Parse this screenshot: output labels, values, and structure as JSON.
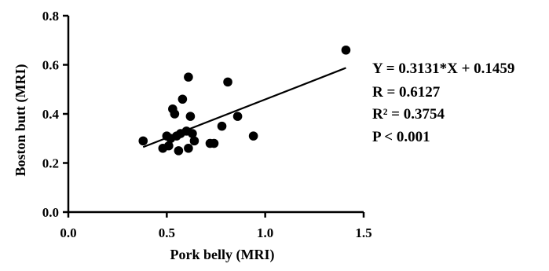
{
  "chart_data": {
    "type": "scatter",
    "xlabel": "Pork belly (MRI)",
    "ylabel": "Boston butt (MRI)",
    "xlim": [
      0.0,
      1.5
    ],
    "ylim": [
      0.0,
      0.8
    ],
    "xticks": [
      "0.0",
      "0.5",
      "1.0",
      "1.5"
    ],
    "yticks": [
      "0.0",
      "0.2",
      "0.4",
      "0.6",
      "0.8"
    ],
    "grid": false,
    "points": [
      {
        "x": 0.38,
        "y": 0.29
      },
      {
        "x": 0.48,
        "y": 0.26
      },
      {
        "x": 0.5,
        "y": 0.31
      },
      {
        "x": 0.51,
        "y": 0.27
      },
      {
        "x": 0.52,
        "y": 0.3
      },
      {
        "x": 0.53,
        "y": 0.42
      },
      {
        "x": 0.54,
        "y": 0.4
      },
      {
        "x": 0.55,
        "y": 0.31
      },
      {
        "x": 0.56,
        "y": 0.25
      },
      {
        "x": 0.57,
        "y": 0.32
      },
      {
        "x": 0.58,
        "y": 0.46
      },
      {
        "x": 0.6,
        "y": 0.33
      },
      {
        "x": 0.61,
        "y": 0.26
      },
      {
        "x": 0.61,
        "y": 0.55
      },
      {
        "x": 0.62,
        "y": 0.39
      },
      {
        "x": 0.63,
        "y": 0.32
      },
      {
        "x": 0.64,
        "y": 0.29
      },
      {
        "x": 0.72,
        "y": 0.28
      },
      {
        "x": 0.74,
        "y": 0.28
      },
      {
        "x": 0.78,
        "y": 0.35
      },
      {
        "x": 0.81,
        "y": 0.53
      },
      {
        "x": 0.86,
        "y": 0.39
      },
      {
        "x": 0.94,
        "y": 0.31
      },
      {
        "x": 1.41,
        "y": 0.66
      }
    ],
    "regression": {
      "slope": 0.3131,
      "intercept": 0.1459,
      "x_range": [
        0.38,
        1.41
      ]
    },
    "annotations": [
      "Y = 0.3131*X + 0.1459",
      "R = 0.6127",
      "R² = 0.3754",
      "P < 0.001"
    ]
  }
}
